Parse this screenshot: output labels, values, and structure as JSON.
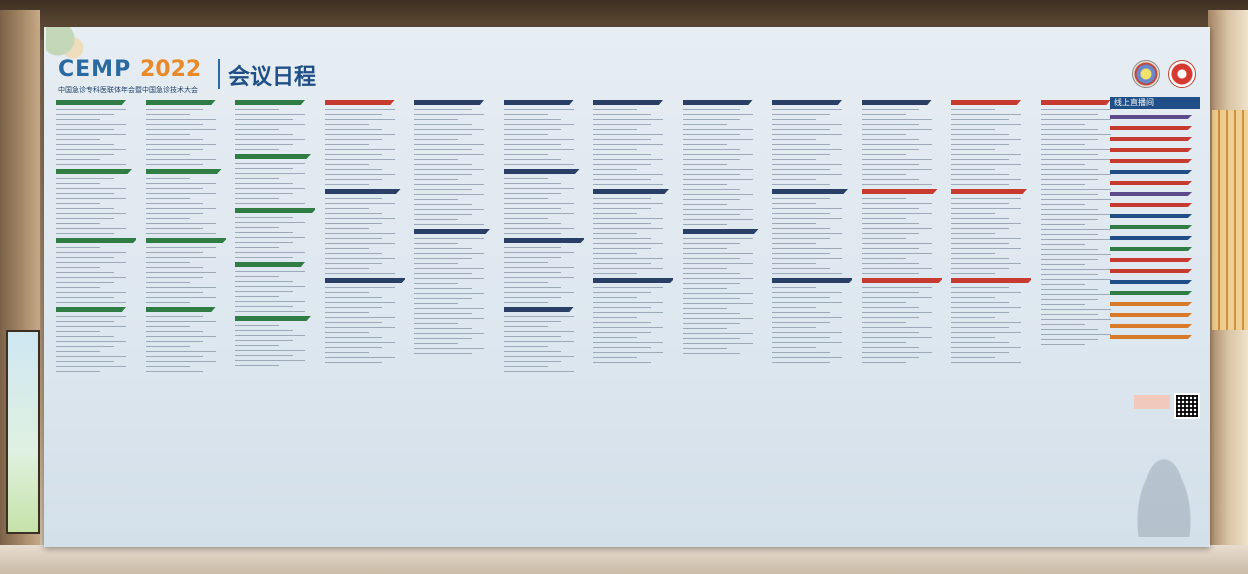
{
  "backdrop": {
    "brand_name": "CEMP",
    "brand_year": "2022",
    "title": "会议日程",
    "subtitle": "中国急诊专科医联体年会暨中国急诊技术大会"
  },
  "online_panel": {
    "heading": "线上直播间"
  },
  "colors": {
    "green": "#2f7d45",
    "navy": "#2a3f66",
    "red": "#c63a2f",
    "blue": "#1f4f86",
    "orange": "#d77b2a",
    "purple": "#5c4a8a"
  },
  "columns": [
    {
      "id": "col-1",
      "headers": [
        "green",
        "green",
        "green",
        "green"
      ]
    },
    {
      "id": "col-2",
      "headers": [
        "green",
        "green",
        "green",
        "green"
      ]
    },
    {
      "id": "col-3",
      "headers": [
        "green",
        "green",
        "green",
        "green",
        "green"
      ]
    },
    {
      "id": "col-4",
      "headers": [
        "red",
        "navy",
        "navy"
      ]
    },
    {
      "id": "col-5",
      "headers": [
        "navy",
        "navy"
      ]
    },
    {
      "id": "col-6",
      "headers": [
        "navy",
        "navy",
        "navy",
        "navy"
      ]
    },
    {
      "id": "col-7",
      "headers": [
        "navy",
        "navy",
        "navy"
      ]
    },
    {
      "id": "col-8",
      "headers": [
        "navy",
        "navy"
      ]
    },
    {
      "id": "col-9",
      "headers": [
        "navy",
        "navy",
        "navy"
      ]
    },
    {
      "id": "col-10",
      "headers": [
        "navy",
        "red",
        "red"
      ]
    },
    {
      "id": "col-11",
      "headers": [
        "red",
        "red",
        "red"
      ]
    },
    {
      "id": "col-12",
      "headers": [
        "red"
      ]
    }
  ],
  "panel_bars": [
    "purple",
    "red",
    "red",
    "red",
    "red",
    "blue",
    "red",
    "purple",
    "red",
    "blue",
    "green",
    "blue",
    "green",
    "red",
    "red",
    "blue",
    "green",
    "orange",
    "orange",
    "orange",
    "orange"
  ],
  "icons": [
    "association-logo-icon",
    "hospital-logo-icon",
    "qr-code-icon"
  ]
}
